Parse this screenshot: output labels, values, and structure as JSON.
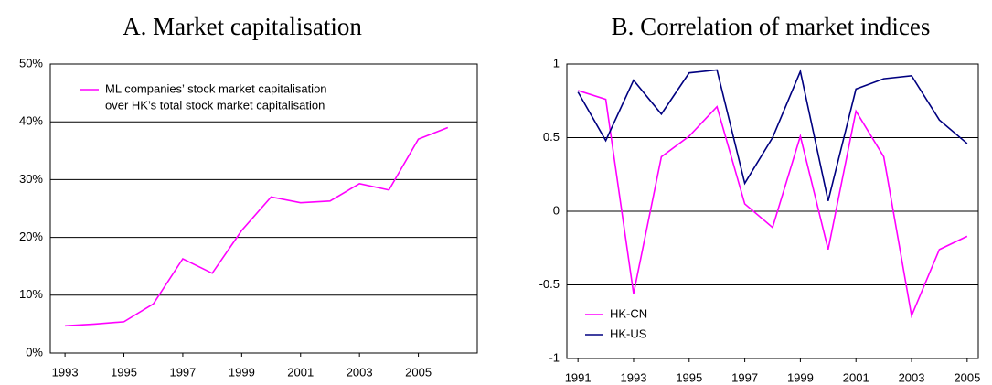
{
  "chart_data": [
    {
      "type": "line",
      "title": "A. Market capitalisation",
      "x": [
        1993,
        1994,
        1995,
        1996,
        1997,
        1998,
        1999,
        2000,
        2001,
        2002,
        2003,
        2004,
        2005,
        2006
      ],
      "series": [
        {
          "name": [
            "ML companies’ stock market capitalisation",
            "over HK’s total stock market capitalisation"
          ],
          "color": "#ff00ff",
          "values": [
            4.7,
            5.0,
            5.4,
            8.5,
            16.3,
            13.8,
            21.2,
            27.0,
            26.0,
            26.3,
            29.3,
            28.2,
            37.0,
            39.0
          ]
        }
      ],
      "xlim": [
        1992.5,
        2007
      ],
      "xticks": [
        1993,
        1995,
        1997,
        1999,
        2001,
        2003,
        2005
      ],
      "ylim": [
        0,
        50
      ],
      "yticks": [
        {
          "value": 0,
          "label": "0%"
        },
        {
          "value": 10,
          "label": "10%"
        },
        {
          "value": 20,
          "label": "20%"
        },
        {
          "value": 30,
          "label": "30%"
        },
        {
          "value": 40,
          "label": "40%"
        },
        {
          "value": 50,
          "label": "50%"
        }
      ],
      "grid": true,
      "legend": "top-left"
    },
    {
      "type": "line",
      "title": "B. Correlation of market indices",
      "x": [
        1991,
        1992,
        1993,
        1994,
        1995,
        1996,
        1997,
        1998,
        1999,
        2000,
        2001,
        2002,
        2003,
        2004,
        2005
      ],
      "series": [
        {
          "name": "HK-CN",
          "color": "#ff00ff",
          "values": [
            0.82,
            0.76,
            -0.56,
            0.37,
            0.51,
            0.71,
            0.05,
            -0.11,
            0.51,
            -0.26,
            0.68,
            0.37,
            -0.71,
            -0.26,
            -0.17
          ]
        },
        {
          "name": "HK-US",
          "color": "#000080",
          "values": [
            0.81,
            0.48,
            0.89,
            0.66,
            0.94,
            0.96,
            0.19,
            0.5,
            0.95,
            0.07,
            0.83,
            0.9,
            0.92,
            0.62,
            0.46
          ]
        }
      ],
      "xlim": [
        1990.6,
        2005.4
      ],
      "xticks": [
        1991,
        1993,
        1995,
        1997,
        1999,
        2001,
        2003,
        2005
      ],
      "ylim": [
        -1,
        1
      ],
      "yticks": [
        -1,
        -0.5,
        0,
        0.5,
        1
      ],
      "grid": true,
      "legend": "bottom-left"
    }
  ]
}
